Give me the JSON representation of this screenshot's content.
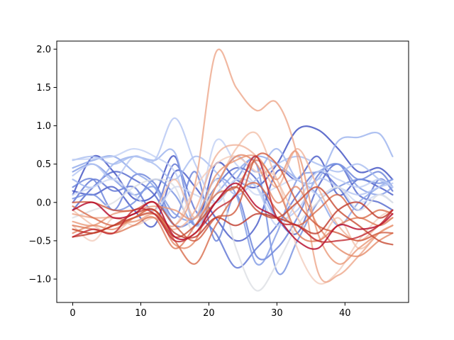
{
  "chart_data": {
    "type": "line",
    "title": "",
    "xlabel": "",
    "ylabel": "",
    "xlim": [
      -2.35,
      49.35
    ],
    "ylim": [
      -1.305,
      2.105
    ],
    "xticks": [
      0,
      10,
      20,
      30,
      40
    ],
    "yticks": [
      -1.0,
      -0.5,
      0.0,
      0.5,
      1.0,
      1.5,
      2.0
    ],
    "ytick_labels": [
      "−1.0",
      "−0.5",
      "0.0",
      "0.5",
      "1.0",
      "1.5",
      "2.0"
    ],
    "grid": false,
    "legend": "none",
    "colormap": "coolwarm",
    "x": [
      0,
      3,
      6,
      9,
      12,
      15,
      18,
      21,
      24,
      27,
      30,
      33,
      36,
      39,
      42,
      45,
      47
    ],
    "series": [
      {
        "color": "#3b4cc0",
        "values": [
          0.1,
          0.6,
          0.4,
          0.05,
          0.1,
          0.6,
          -0.3,
          0.5,
          0.3,
          0.2,
          0.5,
          0.95,
          0.95,
          0.7,
          0.4,
          0.45,
          0.3
        ]
      },
      {
        "color": "#4558c7",
        "values": [
          0.15,
          0.1,
          0.2,
          -0.1,
          -0.3,
          0.4,
          0.2,
          -0.2,
          -0.5,
          -0.3,
          0.4,
          0.3,
          0.6,
          0.1,
          0.3,
          0.2,
          0.1
        ]
      },
      {
        "color": "#5065cc",
        "values": [
          -0.1,
          0.2,
          0.4,
          0.3,
          0.1,
          -0.3,
          -0.2,
          0.2,
          0.45,
          0.3,
          -0.2,
          -0.4,
          0.2,
          0.5,
          0.1,
          0.0,
          -0.1
        ]
      },
      {
        "color": "#5b72d3",
        "values": [
          0.0,
          0.3,
          0.15,
          0.2,
          -0.1,
          0.5,
          -0.1,
          -0.4,
          -0.85,
          -0.6,
          -0.3,
          0.1,
          0.4,
          0.2,
          -0.1,
          0.3,
          0.15
        ]
      },
      {
        "color": "#6780da",
        "values": [
          0.2,
          0.3,
          -0.1,
          0.35,
          0.25,
          -0.2,
          0.4,
          -0.5,
          0.1,
          -0.7,
          -0.6,
          -0.2,
          0.35,
          0.5,
          0.3,
          0.4,
          0.2
        ]
      },
      {
        "color": "#738ee0",
        "values": [
          0.05,
          0.1,
          -0.1,
          0.0,
          0.3,
          0.1,
          -0.3,
          0.0,
          0.3,
          0.5,
          -0.9,
          -0.5,
          0.0,
          0.2,
          0.3,
          0.25,
          0.3
        ]
      },
      {
        "color": "#7f9ae5",
        "values": [
          0.4,
          0.5,
          0.3,
          0.1,
          0.2,
          -0.15,
          -0.2,
          0.3,
          0.1,
          -0.8,
          -0.4,
          0.3,
          0.4,
          0.5,
          0.2,
          0.1,
          0.2
        ]
      },
      {
        "color": "#8ca6ea",
        "values": [
          0.45,
          0.55,
          0.6,
          0.4,
          0.2,
          -0.3,
          -0.2,
          0.1,
          0.4,
          0.6,
          0.5,
          0.3,
          0.1,
          -0.3,
          0.0,
          0.2,
          0.3
        ]
      },
      {
        "color": "#9ab2ee",
        "values": [
          0.3,
          0.2,
          0.5,
          0.6,
          0.55,
          0.65,
          -0.3,
          0.2,
          0.6,
          0.4,
          0.7,
          0.3,
          0.3,
          0.8,
          0.85,
          0.9,
          0.6
        ]
      },
      {
        "color": "#a7bdf0",
        "values": [
          0.55,
          0.6,
          0.5,
          0.6,
          0.5,
          0.3,
          0.6,
          0.4,
          0.1,
          0.3,
          0.5,
          0.6,
          0.5,
          0.4,
          0.5,
          0.3,
          0.2
        ]
      },
      {
        "color": "#b4c6f2",
        "values": [
          0.35,
          0.5,
          0.3,
          0.6,
          0.55,
          1.1,
          0.5,
          0.0,
          0.3,
          0.2,
          -0.2,
          -0.1,
          0.3,
          0.2,
          0.1,
          0.2,
          0.25
        ]
      },
      {
        "color": "#c1d0f4",
        "values": [
          0.56,
          0.57,
          0.6,
          0.7,
          0.6,
          0.4,
          -0.2,
          0.8,
          0.5,
          0.2,
          -0.3,
          0.0,
          0.4,
          0.3,
          0.2,
          0.3,
          0.2
        ]
      },
      {
        "color": "#cdd8f4",
        "values": [
          0.1,
          0.2,
          0.3,
          0.1,
          -0.1,
          0.2,
          0.1,
          0.0,
          0.3,
          0.1,
          0.2,
          0.3,
          0.1,
          0.2,
          0.0,
          0.1,
          0.0
        ]
      },
      {
        "color": "#dcdfe4",
        "values": [
          -0.2,
          -0.1,
          0.0,
          0.2,
          0.3,
          0.2,
          -0.4,
          0.3,
          -0.6,
          -1.15,
          -0.8,
          -0.3,
          0.0,
          0.2,
          -0.1,
          0.1,
          0.0
        ]
      },
      {
        "color": "#f3cdbd",
        "values": [
          -0.3,
          -0.5,
          -0.2,
          -0.3,
          -0.2,
          -0.3,
          0.2,
          0.5,
          0.6,
          0.4,
          0.3,
          -0.6,
          -1.05,
          -0.9,
          -0.5,
          -0.2,
          -0.1
        ]
      },
      {
        "color": "#f2c0aa",
        "values": [
          -0.1,
          -0.3,
          -0.4,
          -0.2,
          -0.1,
          0.3,
          -0.2,
          0.2,
          0.7,
          0.9,
          0.3,
          -0.2,
          -0.5,
          -0.2,
          -0.6,
          -0.4,
          -0.3
        ]
      },
      {
        "color": "#f0b39a",
        "values": [
          -0.35,
          -0.4,
          -0.3,
          -0.25,
          -0.2,
          -0.35,
          -0.1,
          0.6,
          0.75,
          0.6,
          0.2,
          0.7,
          0.2,
          -0.3,
          -0.5,
          -0.3,
          -0.2
        ]
      },
      {
        "color": "#eea689",
        "values": [
          -0.15,
          -0.2,
          -0.2,
          -0.25,
          -0.15,
          -0.3,
          0.25,
          1.95,
          1.5,
          1.2,
          1.3,
          0.6,
          -0.9,
          -0.95,
          -0.7,
          -0.4,
          -0.3
        ]
      },
      {
        "color": "#ea9878",
        "values": [
          -0.25,
          -0.3,
          -0.15,
          -0.1,
          -0.05,
          -0.1,
          -0.2,
          0.35,
          0.55,
          0.6,
          0.3,
          0.65,
          -0.4,
          -0.8,
          -0.6,
          -0.4,
          -0.3
        ]
      },
      {
        "color": "#e58a68",
        "values": [
          -0.4,
          -0.3,
          -0.35,
          -0.2,
          -0.1,
          -0.55,
          -0.5,
          0.2,
          0.6,
          0.5,
          0.0,
          0.2,
          -0.3,
          -0.6,
          -0.7,
          -0.5,
          -0.4
        ]
      },
      {
        "color": "#df7b59",
        "values": [
          -0.3,
          -0.35,
          -0.4,
          -0.3,
          -0.2,
          -0.6,
          -0.3,
          0.1,
          0.2,
          0.55,
          0.2,
          -0.4,
          -0.5,
          -0.3,
          -0.2,
          -0.3,
          -0.2
        ]
      },
      {
        "color": "#d86b4b",
        "values": [
          -0.05,
          -0.2,
          -0.3,
          -0.2,
          -0.1,
          -0.5,
          -0.8,
          -0.3,
          0.1,
          0.25,
          -0.1,
          -0.3,
          -0.1,
          0.1,
          -0.2,
          -0.1,
          -0.15
        ]
      },
      {
        "color": "#d15b3e",
        "values": [
          0.0,
          0.0,
          -0.1,
          -0.1,
          0.0,
          -0.3,
          -0.5,
          -0.2,
          -0.1,
          0.6,
          0.5,
          0.0,
          -0.3,
          -0.4,
          -0.5,
          -0.4,
          -0.4
        ]
      },
      {
        "color": "#c84b33",
        "values": [
          -0.35,
          -0.4,
          -0.3,
          -0.2,
          -0.15,
          -0.45,
          -0.3,
          0.0,
          0.2,
          -0.1,
          -0.2,
          0.0,
          0.2,
          -0.1,
          -0.3,
          -0.5,
          -0.55
        ]
      },
      {
        "color": "#bf3a2a",
        "values": [
          -0.45,
          -0.4,
          -0.3,
          -0.15,
          -0.1,
          -0.4,
          -0.45,
          -0.2,
          -0.3,
          -0.15,
          -0.2,
          -0.3,
          -0.4,
          -0.1,
          0.0,
          -0.2,
          -0.1
        ]
      },
      {
        "color": "#b40426",
        "values": [
          -0.1,
          0.0,
          -0.2,
          -0.15,
          0.0,
          -0.45,
          -0.4,
          0.0,
          0.25,
          -0.05,
          -0.2,
          -0.5,
          -0.6,
          -0.3,
          -0.35,
          -0.3,
          -0.15
        ]
      },
      {
        "color": "#c0282f",
        "values": [
          -0.45,
          -0.35,
          -0.4,
          -0.1,
          -0.15,
          -0.5,
          -0.4,
          -0.1,
          0.1,
          0.6,
          -0.2,
          -0.3,
          -0.5,
          -0.5,
          -0.45,
          -0.3,
          -0.1
        ]
      }
    ]
  }
}
